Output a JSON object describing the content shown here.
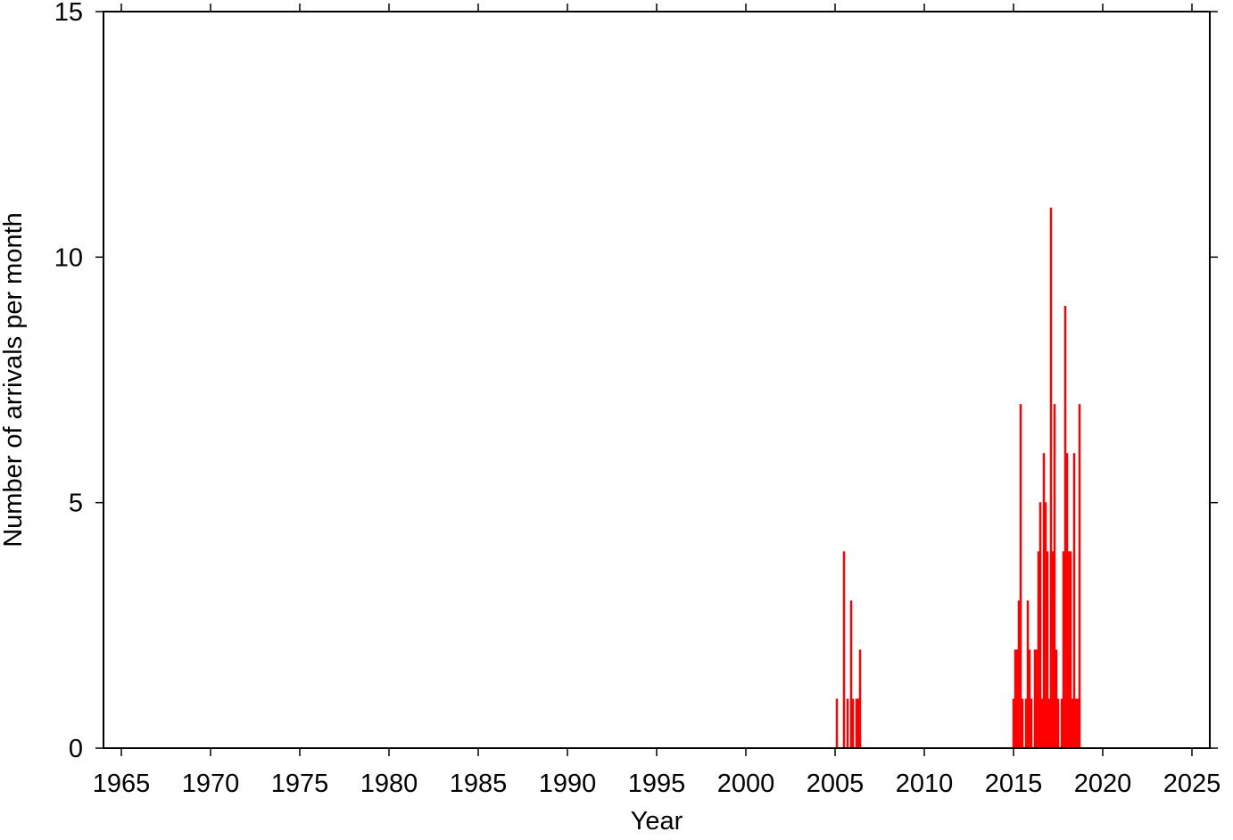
{
  "chart_data": {
    "type": "bar",
    "x_label": "Year",
    "y_label": "Number of arrivals per month",
    "x": [
      2005.1,
      2005.5,
      2005.7,
      2005.9,
      2006.0,
      2006.2,
      2006.3,
      2006.4,
      2015.0,
      2015.1,
      2015.2,
      2015.3,
      2015.4,
      2015.5,
      2015.7,
      2015.8,
      2015.9,
      2016.0,
      2016.2,
      2016.3,
      2016.4,
      2016.5,
      2016.6,
      2016.7,
      2016.8,
      2016.9,
      2017.0,
      2017.1,
      2017.2,
      2017.3,
      2017.4,
      2017.5,
      2017.7,
      2017.8,
      2017.9,
      2018.0,
      2018.1,
      2018.2,
      2018.3,
      2018.4,
      2018.5,
      2018.6,
      2018.7
    ],
    "values": [
      1,
      4,
      1,
      3,
      1,
      1,
      1,
      2,
      1,
      2,
      2,
      3,
      7,
      1,
      1,
      3,
      2,
      1,
      2,
      2,
      4,
      5,
      1,
      6,
      5,
      4,
      1,
      11,
      4,
      7,
      2,
      1,
      1,
      4,
      9,
      6,
      4,
      4,
      1,
      6,
      1,
      1,
      7
    ],
    "color": "#ff0000",
    "xlim": [
      1964,
      2026
    ],
    "ylim": [
      0,
      15
    ],
    "xticks": [
      1965,
      1970,
      1975,
      1980,
      1985,
      1990,
      1995,
      2000,
      2005,
      2010,
      2015,
      2020,
      2025
    ],
    "yticks": [
      0,
      5,
      10,
      15
    ]
  }
}
